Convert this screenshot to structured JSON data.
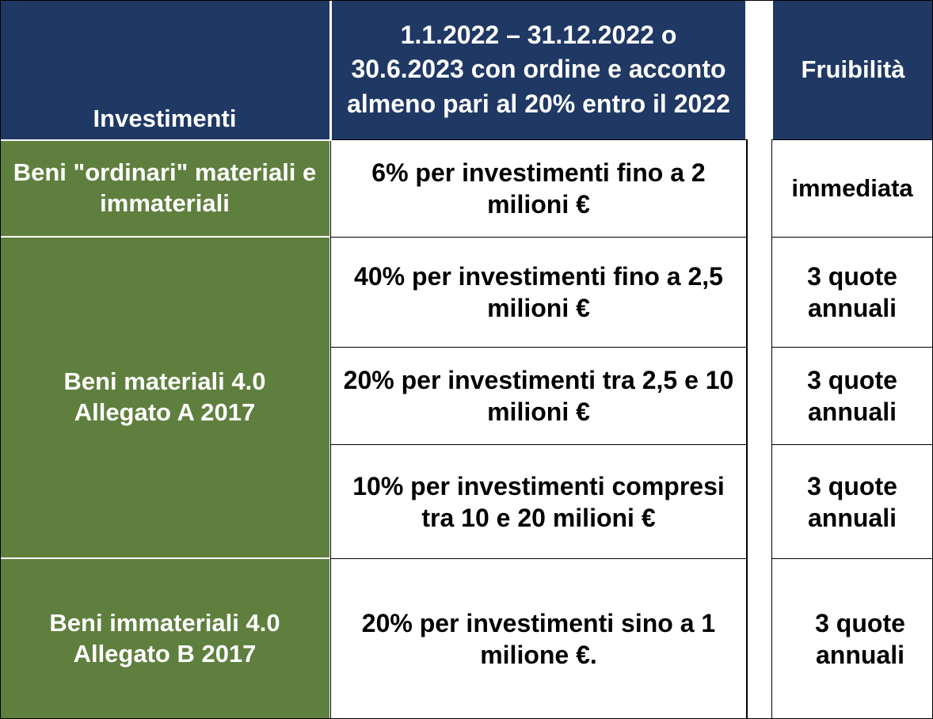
{
  "header": {
    "col1": "Investimenti",
    "col2": "1.1.2022 – 31.12.2022 o 30.6.2023 con ordine e acconto almeno pari al 20% entro il 2022",
    "col3": "Fruibilità"
  },
  "rows": [
    {
      "category": "Beni \"ordinari\" materiali e immateriali",
      "rate": "6% per investimenti fino a 2 milioni €",
      "usability": "immediata"
    },
    {
      "category": "Beni materiali 4.0 Allegato A 2017",
      "rate": "40% per investimenti fino a 2,5 milioni €",
      "usability": "3 quote annuali"
    },
    {
      "rate": "20% per investimenti tra 2,5 e 10 milioni €",
      "usability": "3 quote annuali"
    },
    {
      "rate": "10% per investimenti compresi tra 10 e 20 milioni €",
      "usability": "3 quote annuali"
    },
    {
      "category": "Beni immateriali 4.0 Allegato B 2017",
      "rate": "20% per investimenti sino a 1 milione €.",
      "usability": "3 quote annuali"
    }
  ],
  "colors": {
    "header_bg": "#1f3864",
    "category_bg": "#5f7f3e",
    "text_light": "#ffffff",
    "text_dark": "#000000"
  }
}
